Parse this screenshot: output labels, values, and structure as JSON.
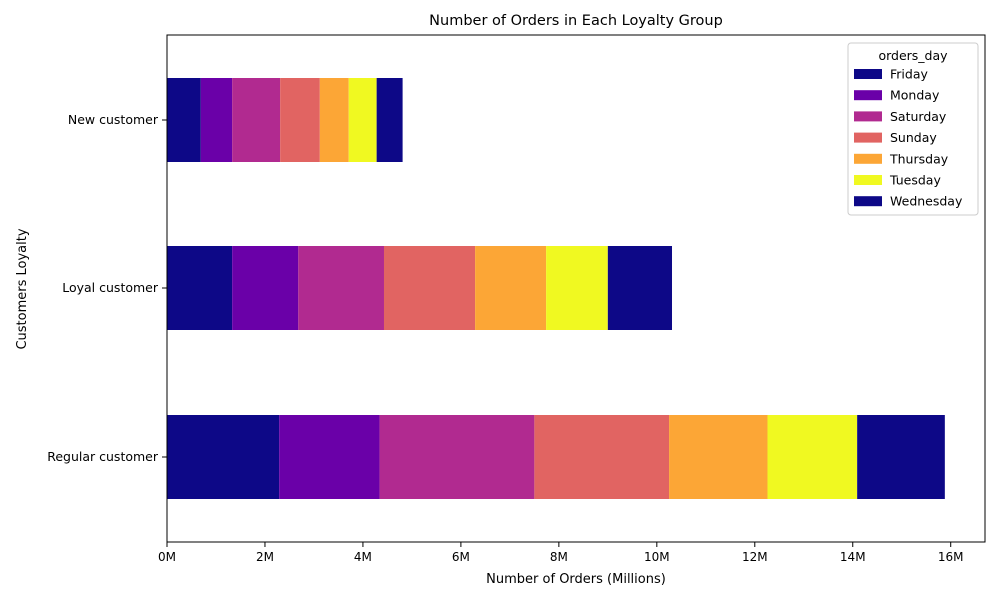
{
  "chart_data": {
    "type": "bar",
    "orientation": "horizontal",
    "stacked": true,
    "title": "Number of Orders in Each Loyalty Group",
    "xlabel": "Number of Orders (Millions)",
    "ylabel": "Customers Loyalty",
    "xlim": [
      0,
      16.7
    ],
    "x_ticks": [
      0,
      2,
      4,
      6,
      8,
      10,
      12,
      14,
      16
    ],
    "x_tick_labels": [
      "0M",
      "2M",
      "4M",
      "6M",
      "8M",
      "10M",
      "12M",
      "14M",
      "16M"
    ],
    "grid": false,
    "legend": {
      "title": "orders_day",
      "placement": "top-right"
    },
    "categories": [
      "New customer",
      "Loyal customer",
      "Regular customer"
    ],
    "series": [
      {
        "name": "Friday",
        "color": "#0d0887",
        "values": [
          0.69,
          1.33,
          2.29
        ]
      },
      {
        "name": "Monday",
        "color": "#6a00a8",
        "values": [
          0.64,
          1.35,
          2.05
        ]
      },
      {
        "name": "Saturday",
        "color": "#b12a90",
        "values": [
          0.98,
          1.75,
          3.16
        ]
      },
      {
        "name": "Sunday",
        "color": "#e16462",
        "values": [
          0.81,
          1.86,
          2.75
        ]
      },
      {
        "name": "Thursday",
        "color": "#fca636",
        "values": [
          0.59,
          1.45,
          2.01
        ]
      },
      {
        "name": "Tuesday",
        "color": "#f0f921",
        "values": [
          0.57,
          1.26,
          1.83
        ]
      },
      {
        "name": "Wednesday",
        "color": "#0d0887",
        "values": [
          0.53,
          1.31,
          1.79
        ]
      }
    ]
  }
}
